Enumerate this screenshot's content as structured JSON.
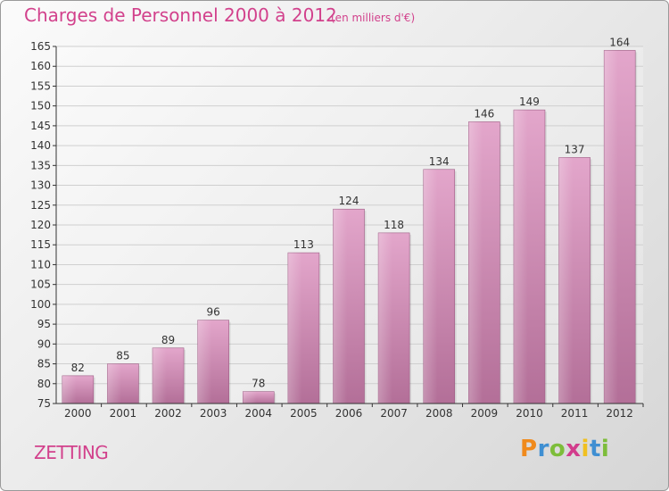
{
  "chart_data": {
    "type": "bar",
    "title": "Charges de Personnel 2000 à 2012",
    "subtitle": "(en milliers d'€)",
    "categories": [
      "2000",
      "2001",
      "2002",
      "2003",
      "2004",
      "2005",
      "2006",
      "2007",
      "2008",
      "2009",
      "2010",
      "2011",
      "2012"
    ],
    "values": [
      82,
      85,
      89,
      96,
      78,
      113,
      124,
      118,
      134,
      146,
      149,
      137,
      164
    ],
    "ylim": [
      75,
      165
    ],
    "yticks": [
      75,
      80,
      85,
      90,
      95,
      100,
      105,
      110,
      115,
      120,
      125,
      130,
      135,
      140,
      145,
      150,
      155,
      160,
      165
    ],
    "grid": true,
    "bar_color": "#d690b8",
    "accent_color": "#d2418c"
  },
  "footer": {
    "place": "ZETTING",
    "logo_letters": [
      "P",
      "r",
      "o",
      "x",
      "i",
      "t",
      "i"
    ],
    "logo_colors": [
      "#f08a1c",
      "#3f8fd2",
      "#7dbd3a",
      "#d23c8c",
      "#f0c020",
      "#3f8fd2",
      "#7dbd3a"
    ]
  }
}
